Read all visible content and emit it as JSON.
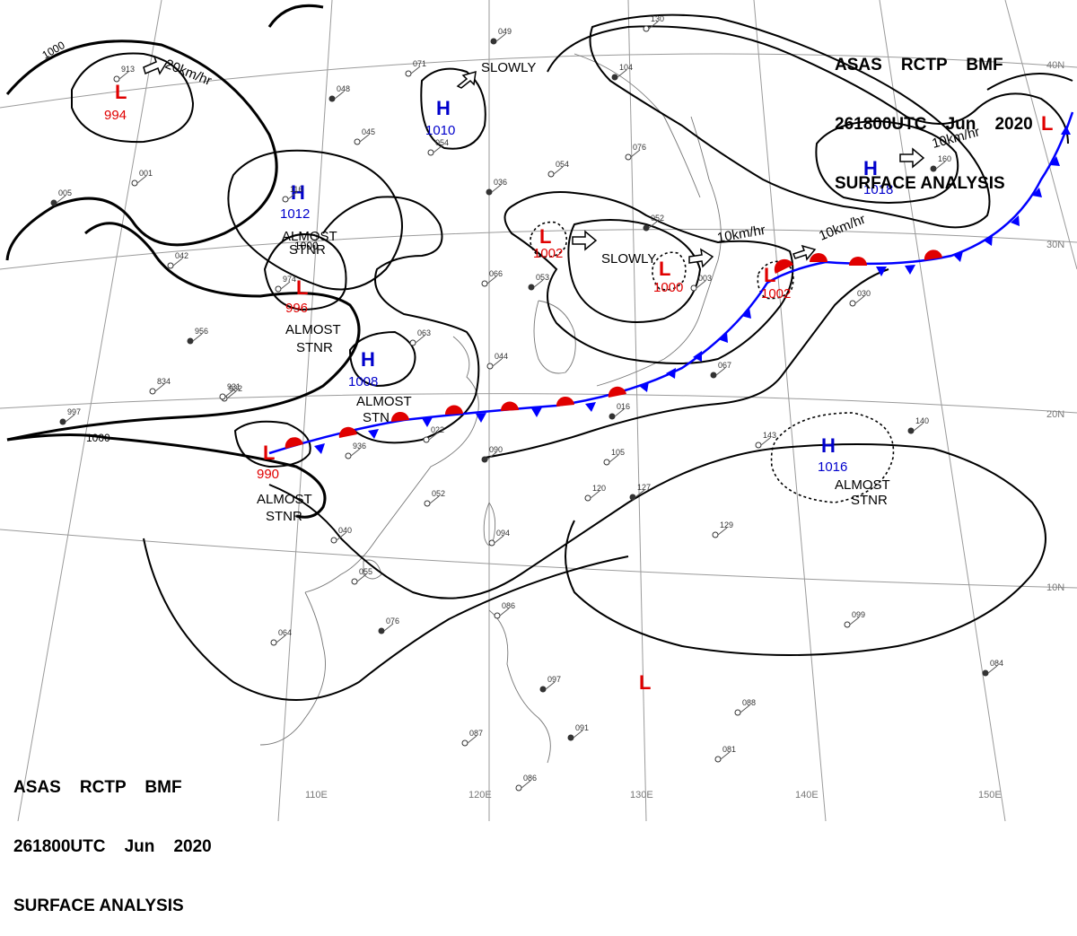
{
  "header": {
    "line1": "ASAS    RCTP    BMF",
    "line2": "261800UTC    Jun    2020",
    "line3": "SURFACE ANALYSIS"
  },
  "lon_labels": [
    "110E",
    "120E",
    "130E",
    "140E",
    "150E"
  ],
  "lat_labels": [
    "10N",
    "20N",
    "30N",
    "40N"
  ],
  "isobar_labels": {
    "west_1000": "1000",
    "sw_1000": "1000",
    "inner_1000": "1000"
  },
  "systems": [
    {
      "type": "L",
      "pressure": "994",
      "color": "#e00000"
    },
    {
      "type": "H",
      "pressure": "1010",
      "color": "#0000cc"
    },
    {
      "type": "H",
      "pressure": "1012",
      "color": "#0000cc"
    },
    {
      "type": "L",
      "pressure": "996",
      "color": "#e00000"
    },
    {
      "type": "H",
      "pressure": "1008",
      "color": "#0000cc"
    },
    {
      "type": "L",
      "pressure": "990",
      "color": "#e00000"
    },
    {
      "type": "L",
      "pressure": "1002",
      "color": "#e00000"
    },
    {
      "type": "L",
      "pressure": "1000",
      "color": "#e00000"
    },
    {
      "type": "L",
      "pressure": "1002",
      "color": "#e00000"
    },
    {
      "type": "H",
      "pressure": "1018",
      "color": "#0000cc"
    },
    {
      "type": "H",
      "pressure": "1016",
      "color": "#0000cc"
    },
    {
      "type": "L",
      "pressure": "",
      "color": "#e00000"
    },
    {
      "type": "L",
      "pressure": "",
      "color": "#e00000"
    }
  ],
  "motions": {
    "m1": "20km/hr",
    "m2": "SLOWLY",
    "m3": "SLOWLY",
    "m4": "10km/hr",
    "m5": "10km/hr",
    "m6": "10km/hr"
  },
  "remarks": {
    "r1a": "ALMOST",
    "r1b": "STNR",
    "r2a": "ALMOST",
    "r2b": "STNR",
    "r3a": "ALMOST",
    "r3b": "STN",
    "r4a": "ALMOST",
    "r4b": "STNR",
    "r5a": "ALMOST",
    "r5b": "STNR"
  },
  "stations": [
    "049",
    "913",
    "071",
    "048",
    "045",
    "054",
    "036",
    "116",
    "001",
    "005",
    "042",
    "974",
    "956",
    "932",
    "066",
    "053",
    "054",
    "076",
    "052",
    "003",
    "130",
    "104",
    "063",
    "044",
    "067",
    "834",
    "931",
    "997",
    "022",
    "936",
    "090",
    "105",
    "120",
    "127",
    "052",
    "040",
    "016",
    "094",
    "055",
    "076",
    "064",
    "086",
    "097",
    "143",
    "129",
    "140",
    "030",
    "099",
    "084",
    "088",
    "087",
    "091",
    "081",
    "086",
    "160"
  ],
  "colors": {
    "isobar": "#000000",
    "warm_front": "#e00000",
    "cold_front": "#0000ff",
    "grid": "#9a9a9a",
    "coast": "#777777"
  }
}
